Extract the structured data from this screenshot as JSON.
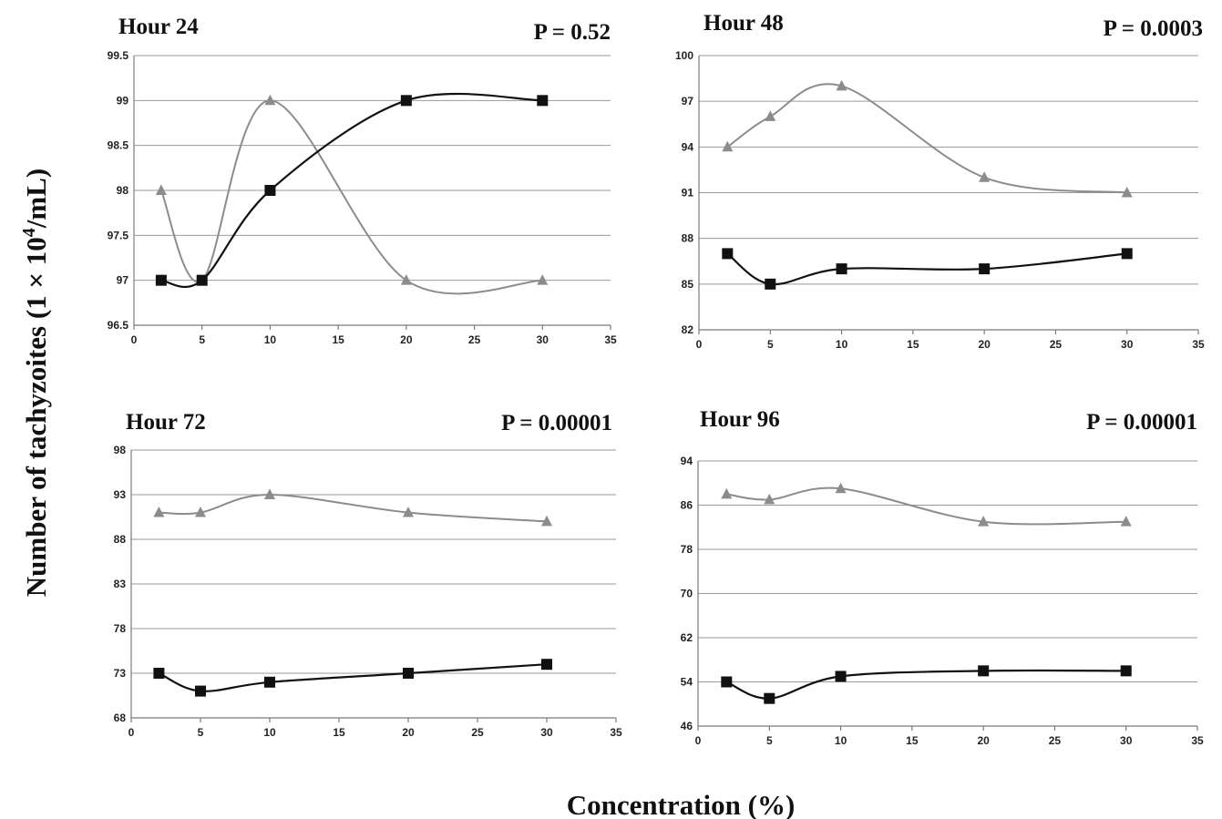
{
  "figure": {
    "ylabel_main": "Number of tachyzoites (1 × 10",
    "ylabel_sup": "4",
    "ylabel_tail": "/mL)",
    "xlabel": "Concentration (%)"
  },
  "colors": {
    "square_series": "#111111",
    "triangle_series": "#8c8c8c",
    "grid": "#9a9a9a"
  },
  "chart_data": [
    {
      "type": "line",
      "title": "Hour 24",
      "annotation": "P = 0.52",
      "xlim": [
        0,
        35
      ],
      "xticks": [
        "0",
        "5",
        "10",
        "15",
        "20",
        "25",
        "30",
        "35"
      ],
      "ylim": [
        96.5,
        99.5
      ],
      "yticks": [
        "96.5",
        "97",
        "97.5",
        "98",
        "98.5",
        "99",
        "99.5"
      ],
      "grid": true,
      "series": [
        {
          "marker": "triangle",
          "color": "#8c8c8c",
          "x": [
            2,
            5,
            10,
            20,
            30
          ],
          "y": [
            98,
            97,
            99,
            97,
            97
          ]
        },
        {
          "marker": "square",
          "color": "#111111",
          "x": [
            2,
            5,
            10,
            20,
            30
          ],
          "y": [
            97,
            97,
            98,
            99,
            99
          ]
        }
      ]
    },
    {
      "type": "line",
      "title": "Hour 48",
      "annotation": "P = 0.0003",
      "xlim": [
        0,
        35
      ],
      "xticks": [
        "0",
        "5",
        "10",
        "15",
        "20",
        "25",
        "30",
        "35"
      ],
      "ylim": [
        82,
        100
      ],
      "yticks": [
        "82",
        "85",
        "88",
        "91",
        "94",
        "97",
        "100"
      ],
      "grid": true,
      "series": [
        {
          "marker": "triangle",
          "color": "#8c8c8c",
          "x": [
            2,
            5,
            10,
            20,
            30
          ],
          "y": [
            94,
            96,
            98,
            92,
            91
          ]
        },
        {
          "marker": "square",
          "color": "#111111",
          "x": [
            2,
            5,
            10,
            20,
            30
          ],
          "y": [
            87,
            85,
            86,
            86,
            87
          ]
        }
      ]
    },
    {
      "type": "line",
      "title": "Hour 72",
      "annotation": "P = 0.00001",
      "xlim": [
        0,
        35
      ],
      "xticks": [
        "0",
        "5",
        "10",
        "15",
        "20",
        "25",
        "30",
        "35"
      ],
      "ylim": [
        68,
        98
      ],
      "yticks": [
        "68",
        "73",
        "78",
        "83",
        "88",
        "93",
        "98"
      ],
      "grid": true,
      "series": [
        {
          "marker": "triangle",
          "color": "#8c8c8c",
          "x": [
            2,
            5,
            10,
            20,
            30
          ],
          "y": [
            91,
            91,
            93,
            91,
            90
          ]
        },
        {
          "marker": "square",
          "color": "#111111",
          "x": [
            2,
            5,
            10,
            20,
            30
          ],
          "y": [
            73,
            71,
            72,
            73,
            74
          ]
        }
      ]
    },
    {
      "type": "line",
      "title": "Hour 96",
      "annotation": "P = 0.00001",
      "xlim": [
        0,
        35
      ],
      "xticks": [
        "0",
        "5",
        "10",
        "15",
        "20",
        "25",
        "30",
        "35"
      ],
      "ylim": [
        46,
        94
      ],
      "yticks": [
        "46",
        "54",
        "62",
        "70",
        "78",
        "86",
        "94"
      ],
      "grid": true,
      "series": [
        {
          "marker": "triangle",
          "color": "#8c8c8c",
          "x": [
            2,
            5,
            10,
            20,
            30
          ],
          "y": [
            88,
            87,
            89,
            83,
            83
          ]
        },
        {
          "marker": "square",
          "color": "#111111",
          "x": [
            2,
            5,
            10,
            20,
            30
          ],
          "y": [
            54,
            51,
            55,
            56,
            56
          ]
        }
      ]
    }
  ]
}
